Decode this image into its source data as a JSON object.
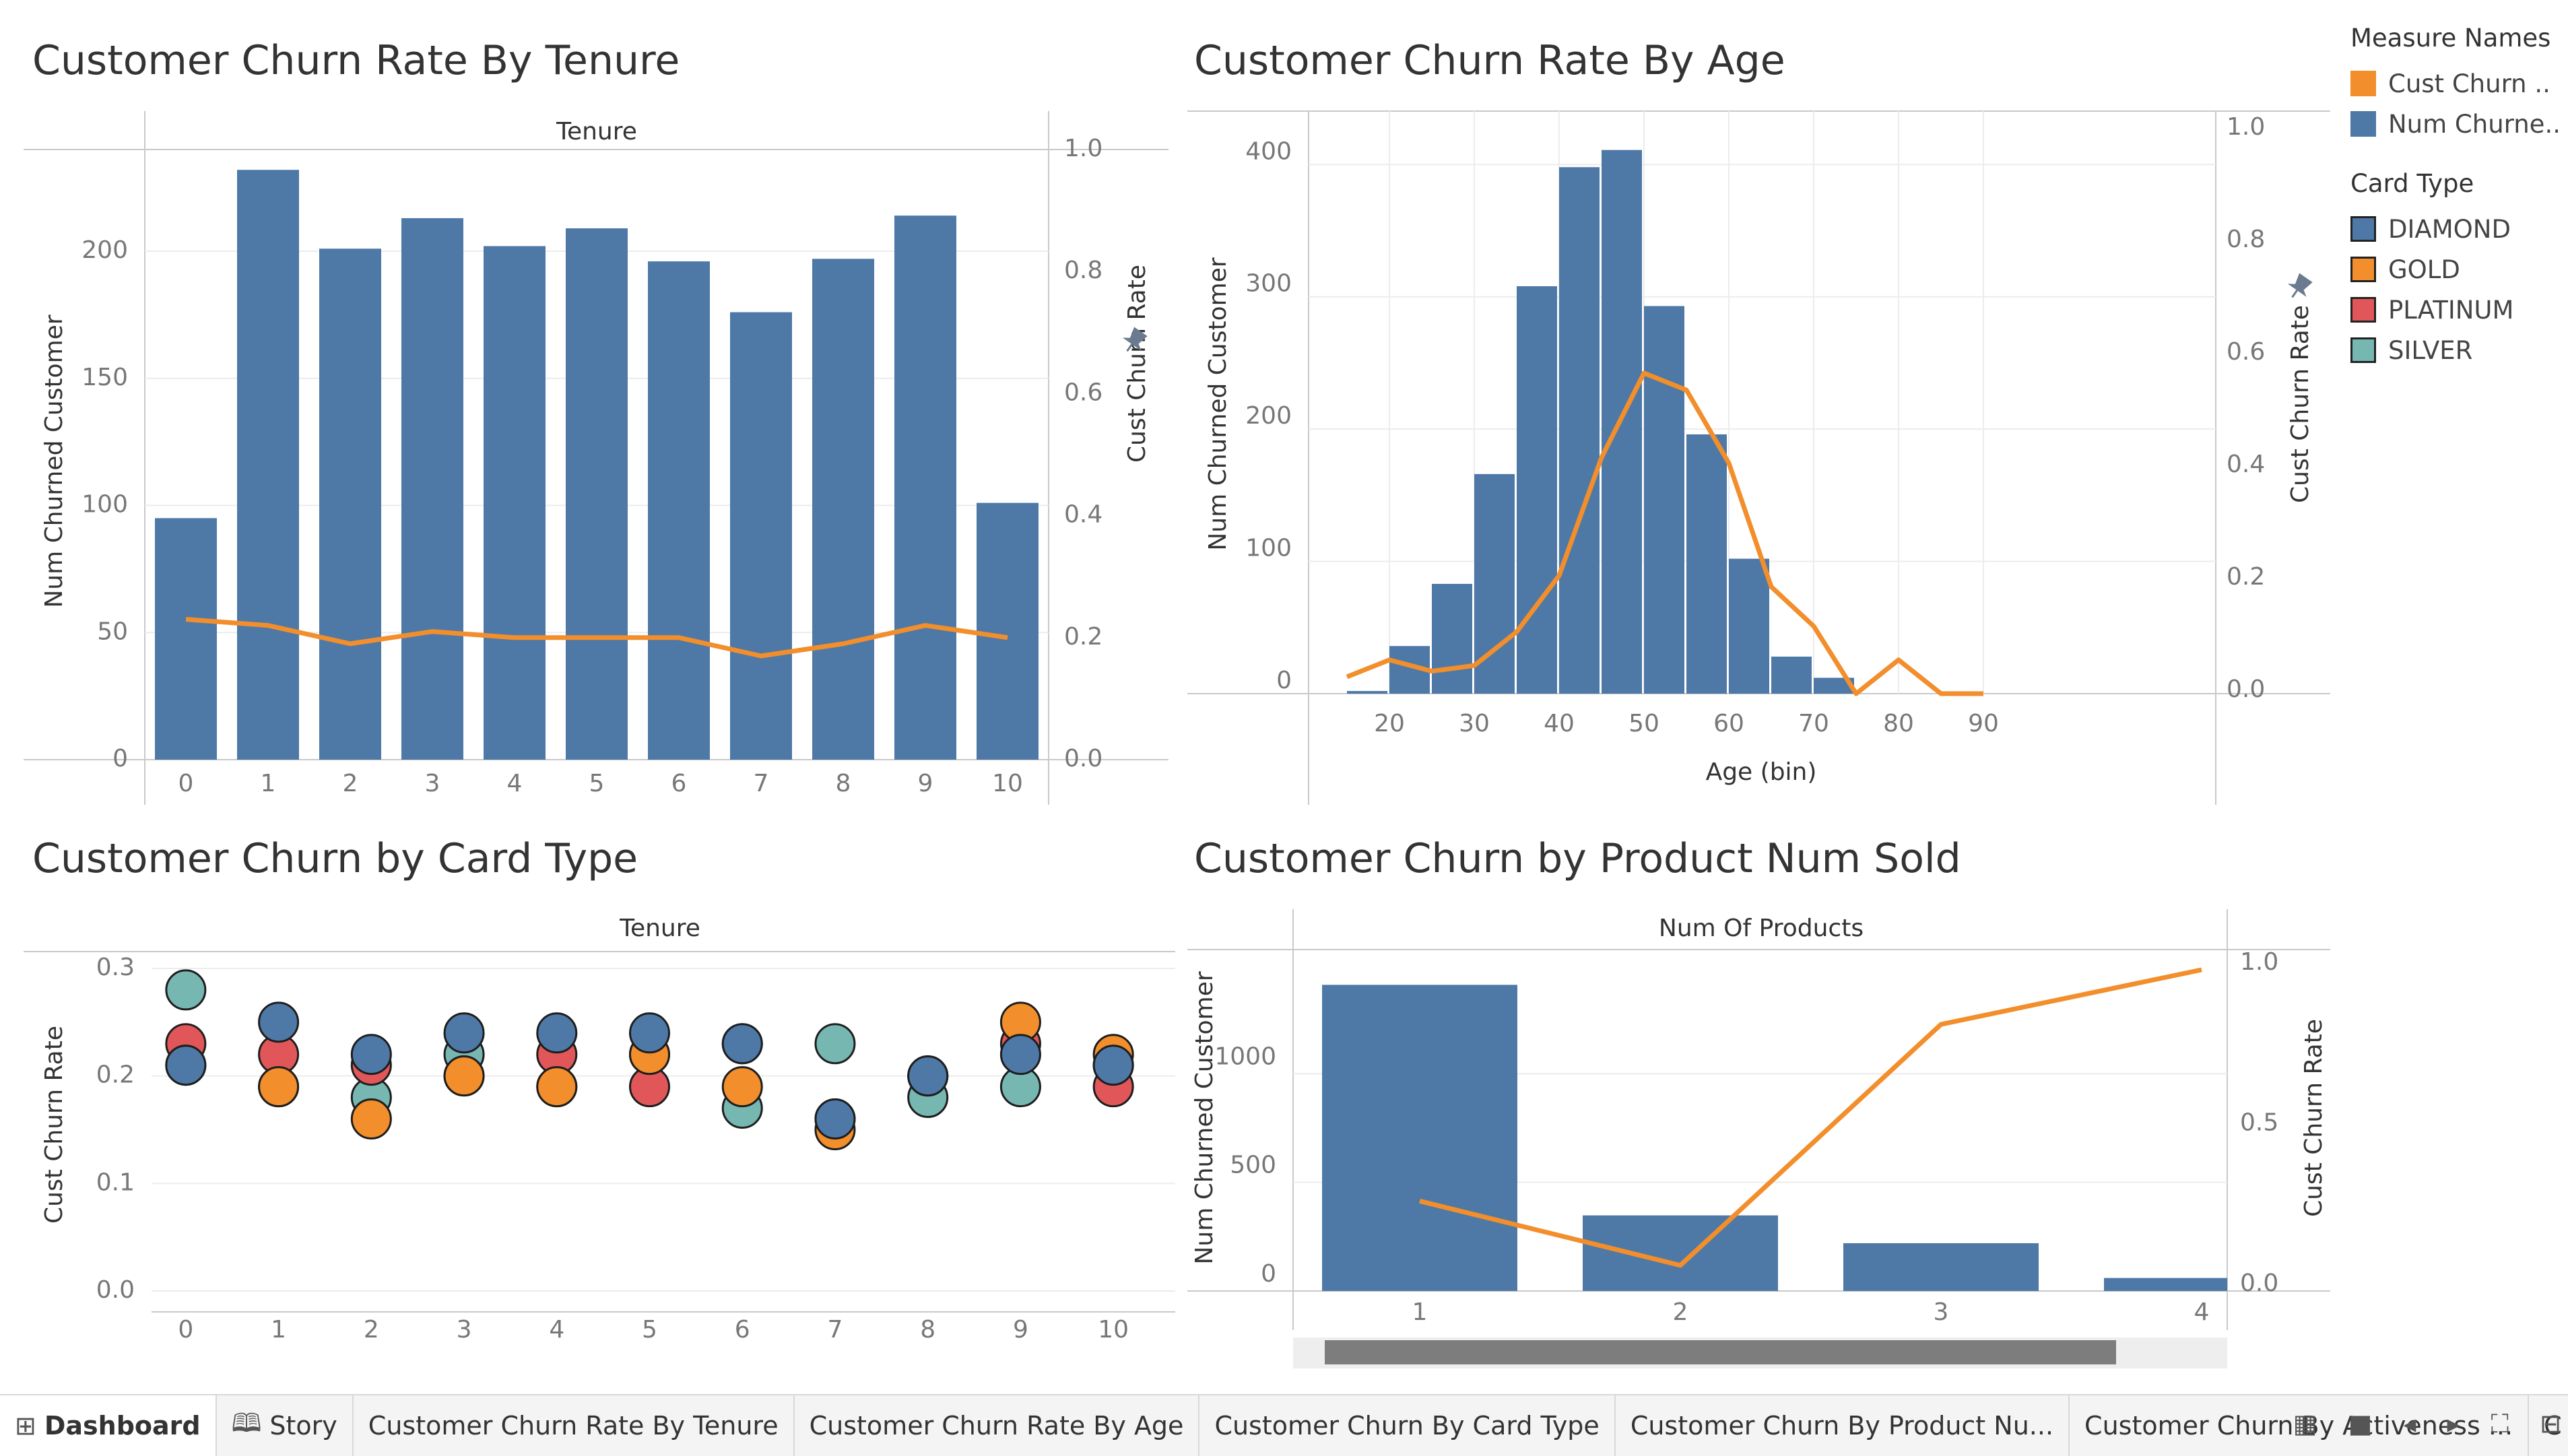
{
  "panels": {
    "tenure_title": "Customer Churn Rate By Tenure",
    "age_title": "Customer Churn Rate By Age",
    "card_title": "Customer Churn by Card Type",
    "product_title": "Customer Churn by Product Num Sold"
  },
  "legend": {
    "measure_title": "Measure Names",
    "measures": [
      {
        "label": "Cust Churn ..",
        "color": "#F28E2B"
      },
      {
        "label": "Num Churne..",
        "color": "#4E79A7"
      }
    ],
    "card_title": "Card Type",
    "cards": [
      {
        "label": "DIAMOND",
        "color": "#4E79A7"
      },
      {
        "label": "GOLD",
        "color": "#F28E2B"
      },
      {
        "label": "PLATINUM",
        "color": "#E15759"
      },
      {
        "label": "SILVER",
        "color": "#76B7B2"
      }
    ]
  },
  "chart_data": [
    {
      "type": "bar",
      "title": "Customer Churn Rate By Tenure",
      "header": "Tenure",
      "categories": [
        "0",
        "1",
        "2",
        "3",
        "4",
        "5",
        "6",
        "7",
        "8",
        "9",
        "10"
      ],
      "ylabel": "Num Churned Customer",
      "ylim": [
        0,
        240
      ],
      "yticks": [
        "0",
        "50",
        "100",
        "150",
        "200"
      ],
      "y2label": "Cust Churn Rate",
      "y2lim": [
        0,
        1.0
      ],
      "y2ticks": [
        "0.0",
        "0.2",
        "0.4",
        "0.6",
        "0.8",
        "1.0"
      ],
      "series": [
        {
          "name": "Num Churned Customer",
          "kind": "bar",
          "color": "#4E79A7",
          "values": [
            95,
            232,
            201,
            213,
            202,
            209,
            196,
            176,
            197,
            214,
            101
          ]
        },
        {
          "name": "Cust Churn Rate",
          "kind": "line",
          "color": "#F28E2B",
          "values": [
            0.23,
            0.22,
            0.19,
            0.21,
            0.2,
            0.2,
            0.2,
            0.17,
            0.19,
            0.22,
            0.2
          ]
        }
      ]
    },
    {
      "type": "bar",
      "title": "Customer Churn Rate By Age",
      "xlabel": "Age (bin)",
      "xticks": [
        "20",
        "30",
        "40",
        "50",
        "60",
        "70",
        "80",
        "90"
      ],
      "xlim": [
        10,
        100
      ],
      "bins": [
        15,
        20,
        25,
        30,
        35,
        40,
        45,
        50,
        55,
        60,
        65,
        70,
        75,
        80,
        85
      ],
      "ylabel": "Num Churned Customer",
      "ylim": [
        0,
        420
      ],
      "yticks": [
        "0",
        "100",
        "200",
        "300",
        "400"
      ],
      "y2label": "Cust Churn Rate",
      "y2lim": [
        0,
        1.0
      ],
      "y2ticks": [
        "0.0",
        "0.2",
        "0.4",
        "0.6",
        "0.8",
        "1.0"
      ],
      "series": [
        {
          "name": "Num Churned Customer",
          "kind": "bar",
          "color": "#4E79A7",
          "values": [
            2,
            36,
            83,
            166,
            308,
            398,
            411,
            293,
            196,
            102,
            28,
            12,
            0,
            0,
            0
          ]
        },
        {
          "name": "Cust Churn Rate",
          "kind": "line",
          "color": "#F28E2B",
          "values": [
            0.03,
            0.06,
            0.04,
            0.05,
            0.11,
            0.21,
            0.42,
            0.57,
            0.54,
            0.41,
            0.19,
            0.12,
            0.0,
            0.06,
            0.0
          ],
          "extra_x": 90,
          "extra_y": 0.0
        }
      ]
    },
    {
      "type": "scatter",
      "title": "Customer Churn by Card Type",
      "header": "Tenure",
      "categories": [
        "0",
        "1",
        "2",
        "3",
        "4",
        "5",
        "6",
        "7",
        "8",
        "9",
        "10"
      ],
      "ylabel": "Cust Churn Rate",
      "ylim": [
        0,
        0.3
      ],
      "yticks": [
        "0.0",
        "0.1",
        "0.2",
        "0.3"
      ],
      "series": [
        {
          "name": "SILVER",
          "color": "#76B7B2",
          "values": [
            0.28,
            0.19,
            0.18,
            0.22,
            0.19,
            0.22,
            0.17,
            0.23,
            0.18,
            0.19,
            0.21
          ]
        },
        {
          "name": "PLATINUM",
          "color": "#E15759",
          "values": [
            0.23,
            0.22,
            0.21,
            0.2,
            0.22,
            0.19,
            0.23,
            0.16,
            0.2,
            0.23,
            0.19
          ]
        },
        {
          "name": "GOLD",
          "color": "#F28E2B",
          "values": [
            0.21,
            0.19,
            0.16,
            0.2,
            0.19,
            0.22,
            0.19,
            0.15,
            0.2,
            0.25,
            0.22
          ]
        },
        {
          "name": "DIAMOND",
          "color": "#4E79A7",
          "values": [
            0.21,
            0.25,
            0.22,
            0.24,
            0.24,
            0.24,
            0.23,
            0.16,
            0.2,
            0.22,
            0.21
          ]
        }
      ]
    },
    {
      "type": "bar",
      "title": "Customer Churn by Product Num Sold",
      "header": "Num Of Products",
      "categories": [
        "1",
        "2",
        "3",
        "4"
      ],
      "ylabel": "Num Churned Customer",
      "ylim": [
        0,
        1500
      ],
      "yticks": [
        "0",
        "500",
        "1000"
      ],
      "y2label": "Cust Churn Rate",
      "y2lim": [
        0,
        1.0
      ],
      "y2ticks": [
        "0.0",
        "0.5",
        "1.0"
      ],
      "series": [
        {
          "name": "Num Churned Customer",
          "kind": "bar",
          "color": "#4E79A7",
          "values": [
            1409,
            348,
            220,
            60
          ]
        },
        {
          "name": "Cust Churn Rate",
          "kind": "line",
          "color": "#F28E2B",
          "values": [
            0.28,
            0.08,
            0.83,
            1.0
          ]
        }
      ]
    }
  ],
  "tabs": [
    {
      "label": "Dashboard",
      "icon": "⊞",
      "active": true
    },
    {
      "label": "Story",
      "icon": "🕮",
      "active": false
    },
    {
      "label": "Customer Churn Rate By Tenure",
      "icon": "",
      "active": false
    },
    {
      "label": "Customer Churn Rate By Age",
      "icon": "",
      "active": false
    },
    {
      "label": "Customer Churn By Card Type",
      "icon": "",
      "active": false
    },
    {
      "label": "Customer Churn By Product Nu...",
      "icon": "",
      "active": false
    },
    {
      "label": "Customer Churn By Activeness ...",
      "icon": "",
      "active": false
    },
    {
      "label": "C",
      "icon": "",
      "active": false
    }
  ],
  "controls": [
    "▦",
    "■",
    "◂",
    "▸",
    "⛶",
    "⊟"
  ]
}
